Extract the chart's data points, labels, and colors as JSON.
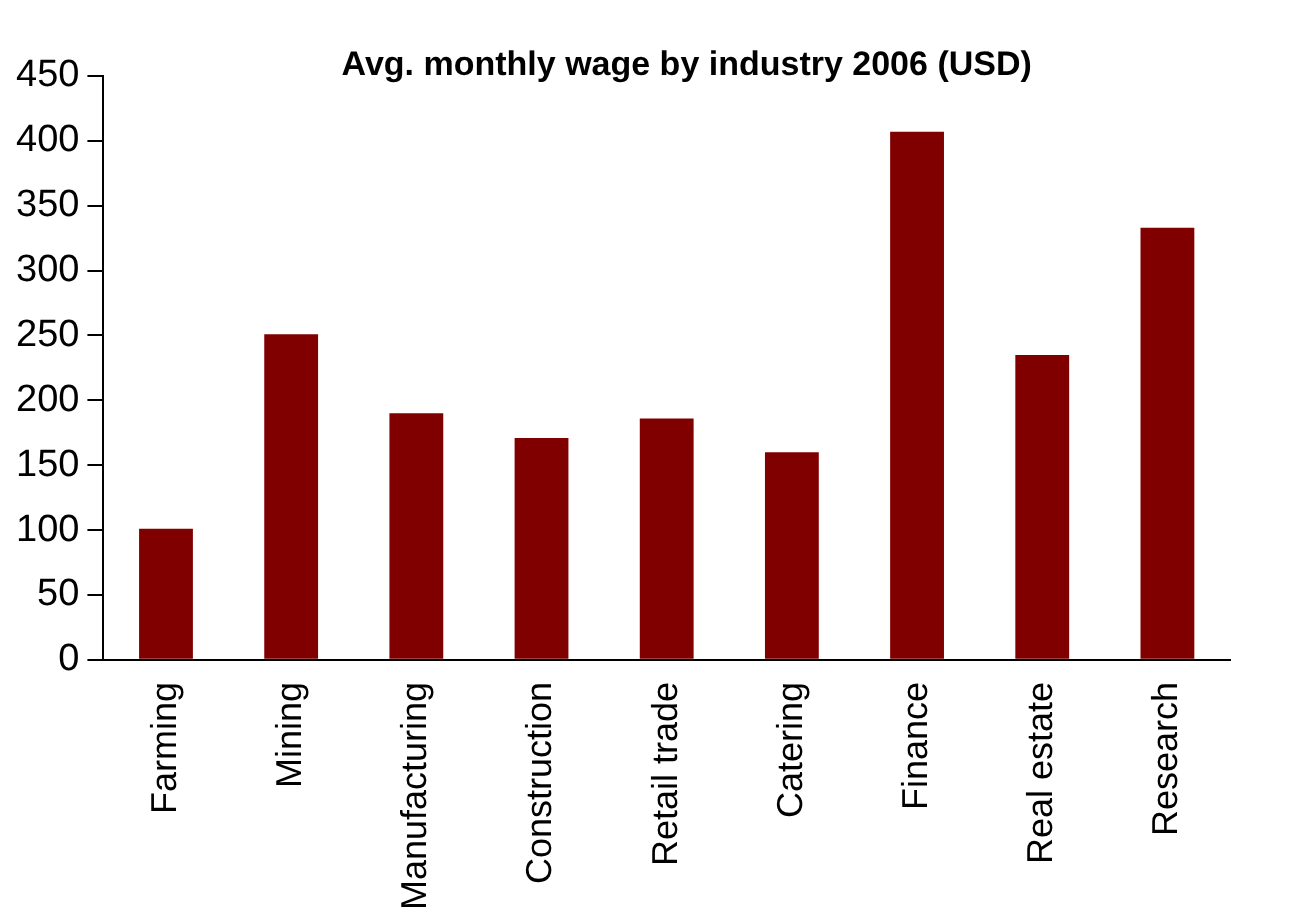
{
  "chart_data": {
    "type": "bar",
    "title": "Avg. monthly wage by industry 2006 (USD)",
    "categories": [
      "Farming",
      "Mining",
      "Manufacturing",
      "Construction",
      "Retail trade",
      "Catering",
      "Finance",
      "Real estate",
      "Research"
    ],
    "values": [
      101,
      251,
      190,
      171,
      186,
      160,
      407,
      235,
      333
    ],
    "color": "#800000",
    "ylim": [
      0,
      450
    ],
    "yticks": [
      0,
      50,
      100,
      150,
      200,
      250,
      300,
      350,
      400,
      450
    ],
    "grid": false,
    "legend": false
  }
}
